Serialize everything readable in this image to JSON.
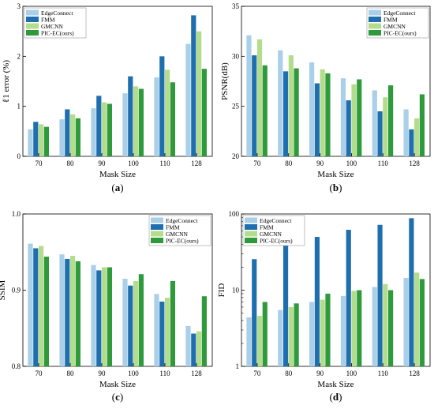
{
  "chart_data": [
    {
      "panel": "(a)",
      "type": "bar",
      "categories": [
        "70",
        "80",
        "90",
        "100",
        "110",
        "128"
      ],
      "xlabel": "Mask Size",
      "ylabel": "ℓ1 error (%)",
      "ylim": [
        0,
        3
      ],
      "yticks": [
        0,
        1,
        2,
        3
      ],
      "log": false,
      "legend_pos": "top-left",
      "series": [
        {
          "name": "EdgeConnect",
          "values": [
            0.54,
            0.74,
            0.96,
            1.26,
            1.58,
            2.25
          ]
        },
        {
          "name": "FMM",
          "values": [
            0.69,
            0.94,
            1.21,
            1.6,
            2.0,
            2.82
          ]
        },
        {
          "name": "GMCNN",
          "values": [
            0.64,
            0.84,
            1.08,
            1.4,
            1.73,
            2.5
          ]
        },
        {
          "name": "PIC-EC(ours)",
          "values": [
            0.59,
            0.76,
            1.05,
            1.35,
            1.48,
            1.75
          ]
        }
      ]
    },
    {
      "panel": "(b)",
      "type": "bar",
      "categories": [
        "70",
        "80",
        "90",
        "100",
        "110",
        "128"
      ],
      "xlabel": "Mask Size",
      "ylabel": "PSNR(dB)",
      "ylim": [
        20,
        35
      ],
      "yticks": [
        20,
        25,
        30,
        35
      ],
      "log": false,
      "legend_pos": "top-right",
      "series": [
        {
          "name": "EdgeConnect",
          "values": [
            32.1,
            30.6,
            29.4,
            27.8,
            26.6,
            24.7
          ]
        },
        {
          "name": "FMM",
          "values": [
            30.1,
            28.5,
            27.3,
            25.6,
            24.5,
            22.7
          ]
        },
        {
          "name": "GMCNN",
          "values": [
            31.7,
            30.1,
            28.7,
            27.2,
            25.9,
            23.8
          ]
        },
        {
          "name": "PIC-EC(ours)",
          "values": [
            29.1,
            28.8,
            28.3,
            27.7,
            27.1,
            26.2
          ]
        }
      ]
    },
    {
      "panel": "(c)",
      "type": "bar",
      "categories": [
        "70",
        "80",
        "90",
        "100",
        "110",
        "128"
      ],
      "xlabel": "Mask Size",
      "ylabel": "SSIM",
      "ylim": [
        0.8,
        1.0
      ],
      "yticks": [
        0.8,
        0.9,
        1.0
      ],
      "log": false,
      "legend_pos": "top-right",
      "series": [
        {
          "name": "EdgeConnect",
          "values": [
            0.961,
            0.947,
            0.933,
            0.915,
            0.895,
            0.853
          ]
        },
        {
          "name": "FMM",
          "values": [
            0.955,
            0.941,
            0.926,
            0.906,
            0.885,
            0.843
          ]
        },
        {
          "name": "GMCNN",
          "values": [
            0.958,
            0.945,
            0.93,
            0.912,
            0.89,
            0.846
          ]
        },
        {
          "name": "PIC-EC(ours)",
          "values": [
            0.944,
            0.938,
            0.93,
            0.921,
            0.912,
            0.892
          ]
        }
      ]
    },
    {
      "panel": "(d)",
      "type": "bar",
      "categories": [
        "70",
        "80",
        "90",
        "100",
        "110",
        "128"
      ],
      "xlabel": "Mask Size",
      "ylabel": "FID",
      "ylim": [
        1,
        100
      ],
      "yticks": [
        1,
        10,
        100
      ],
      "log": true,
      "legend_pos": "top-left",
      "series": [
        {
          "name": "EdgeConnect",
          "values": [
            4.4,
            5.5,
            7.0,
            8.4,
            11.0,
            14.5
          ]
        },
        {
          "name": "FMM",
          "values": [
            25.5,
            40.0,
            50.0,
            62.0,
            72.0,
            88.0
          ]
        },
        {
          "name": "GMCNN",
          "values": [
            4.6,
            6.0,
            7.5,
            9.8,
            12.0,
            17.0
          ]
        },
        {
          "name": "PIC-EC(ours)",
          "values": [
            7.0,
            6.7,
            9.0,
            10.0,
            10.0,
            14.0
          ]
        }
      ]
    }
  ],
  "colors": [
    "#a9cfe9",
    "#1f6fae",
    "#b3dc8c",
    "#2f9a3b"
  ]
}
